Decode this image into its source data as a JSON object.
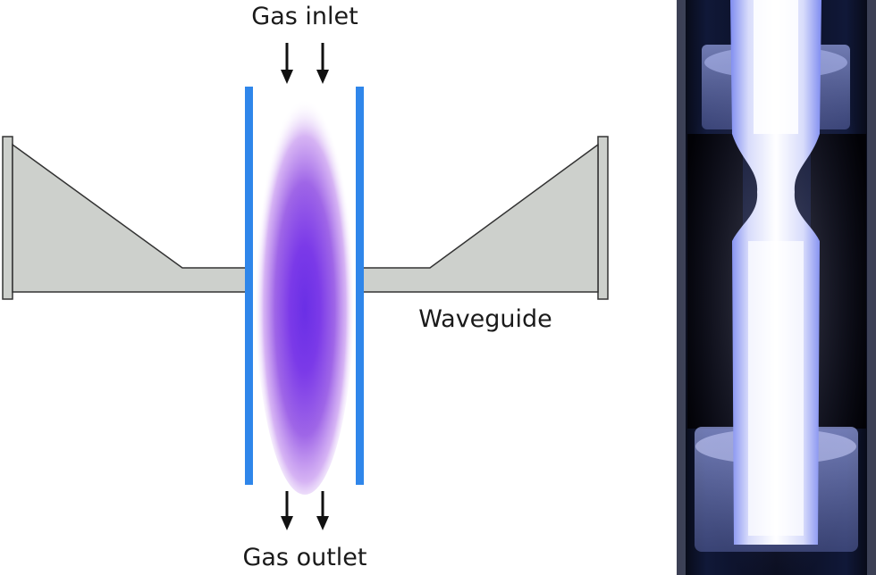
{
  "labels": {
    "gas_inlet": "Gas inlet",
    "gas_outlet": "Gas outlet",
    "waveguide": "Waveguide"
  },
  "colors": {
    "waveguide_fill": "#cdd0cc",
    "tube_wall": "#2f86ea",
    "plasma_core": "#6a2fe6",
    "photo_background": "#000000"
  }
}
